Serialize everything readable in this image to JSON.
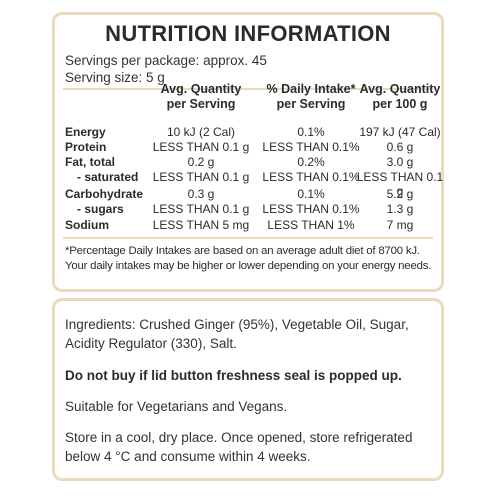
{
  "title": "NUTRITION INFORMATION",
  "servings_per_package": "Servings per package: approx. 45",
  "serving_size": "Serving size: 5 g",
  "columns": {
    "c1": [
      "Avg. Quantity",
      "per Serving"
    ],
    "c2": [
      "% Daily Intake*",
      "per Serving"
    ],
    "c3": [
      "Avg. Quantity",
      "per 100 g"
    ]
  },
  "rows": [
    {
      "label": "Energy",
      "c1": "10 kJ (2 Cal)",
      "c2": "0.1%",
      "c3": "197 kJ (47 Cal)"
    },
    {
      "label": "Protein",
      "c1": "LESS THAN 0.1 g",
      "c2": "LESS THAN 0.1%",
      "c3": "0.6 g"
    },
    {
      "label": "Fat, total",
      "c1": "0.2 g",
      "c2": "0.2%",
      "c3": "3.0 g"
    },
    {
      "label": "- saturated",
      "c1": "LESS THAN 0.1 g",
      "c2": "LESS THAN 0.1%",
      "c3": "LESS THAN 0.1 g"
    },
    {
      "label": "Carbohydrate",
      "c1": "0.3 g",
      "c2": "0.1%",
      "c3": "5.2 g"
    },
    {
      "label": "- sugars",
      "c1": "LESS THAN 0.1 g",
      "c2": "LESS THAN 0.1%",
      "c3": "1.3 g"
    },
    {
      "label": "Sodium",
      "c1": "LESS THAN 5 mg",
      "c2": "LESS THAN 1%",
      "c3": "7 mg"
    }
  ],
  "footnote": [
    "*Percentage Daily Intakes are based on an average adult diet of 8700 kJ.",
    "Your daily intakes may be higher or lower depending on your energy needs."
  ],
  "ingredients": [
    "Ingredients: Crushed Ginger (95%), Vegetable Oil, Sugar,",
    "Acidity Regulator (330), Salt."
  ],
  "warning": "Do not buy if lid button freshness seal is popped up.",
  "suitability": "Suitable for Vegetarians and Vegans.",
  "storage": [
    "Store in a cool, dry place. Once opened, store refrigerated",
    "below 4 °C and consume within 4 weeks."
  ],
  "colors": {
    "border": "#ead9bf",
    "text": "#2b2b2b"
  }
}
